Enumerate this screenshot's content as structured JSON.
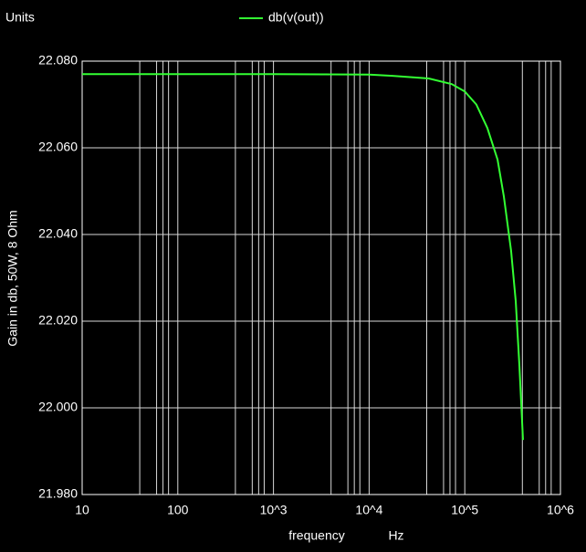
{
  "chart_data": {
    "type": "line",
    "title": "db(v(out))",
    "units_label": "Units",
    "x_label": "frequency",
    "x_unit": "Hz",
    "y_label": "Gain in db, 50W, 8 Ohm",
    "x": [
      10,
      100,
      1000,
      10000,
      17500,
      42000,
      73000,
      100000,
      132000,
      172000,
      220000,
      256000,
      305000,
      341000,
      372000,
      406000
    ],
    "series": [
      {
        "name": "db(v(out))",
        "color": "#33ff33",
        "values": [
          22.077,
          22.077,
          22.077,
          22.0769,
          22.0766,
          22.076,
          22.0747,
          22.073,
          22.07,
          22.0646,
          22.0573,
          22.0488,
          22.0362,
          22.0246,
          22.0099,
          21.9926
        ]
      }
    ],
    "xlog": true,
    "xlim": [
      10,
      1000000
    ],
    "xticks": [
      10,
      100,
      {
        "value": 1000,
        "label": "10^3"
      },
      {
        "value": 10000,
        "label": "10^4"
      },
      {
        "value": 100000,
        "label": "10^5"
      },
      {
        "value": 1000000,
        "label": "10^6"
      }
    ],
    "xminor": [
      40,
      60,
      70,
      80,
      400,
      600,
      700,
      800,
      4000,
      6000,
      7000,
      8000,
      40000,
      60000,
      70000,
      80000,
      400000,
      600000,
      700000,
      800000
    ],
    "ylim": [
      21.98,
      22.08
    ],
    "yticks": [
      {
        "value": 21.98,
        "label": "21.980"
      },
      {
        "value": 22,
        "label": "22.000"
      },
      {
        "value": 22.02,
        "label": "22.020"
      },
      {
        "value": 22.04,
        "label": "22.040"
      },
      {
        "value": 22.06,
        "label": "22.060"
      },
      {
        "value": 22.08,
        "label": "22.080"
      }
    ],
    "grid": true
  }
}
